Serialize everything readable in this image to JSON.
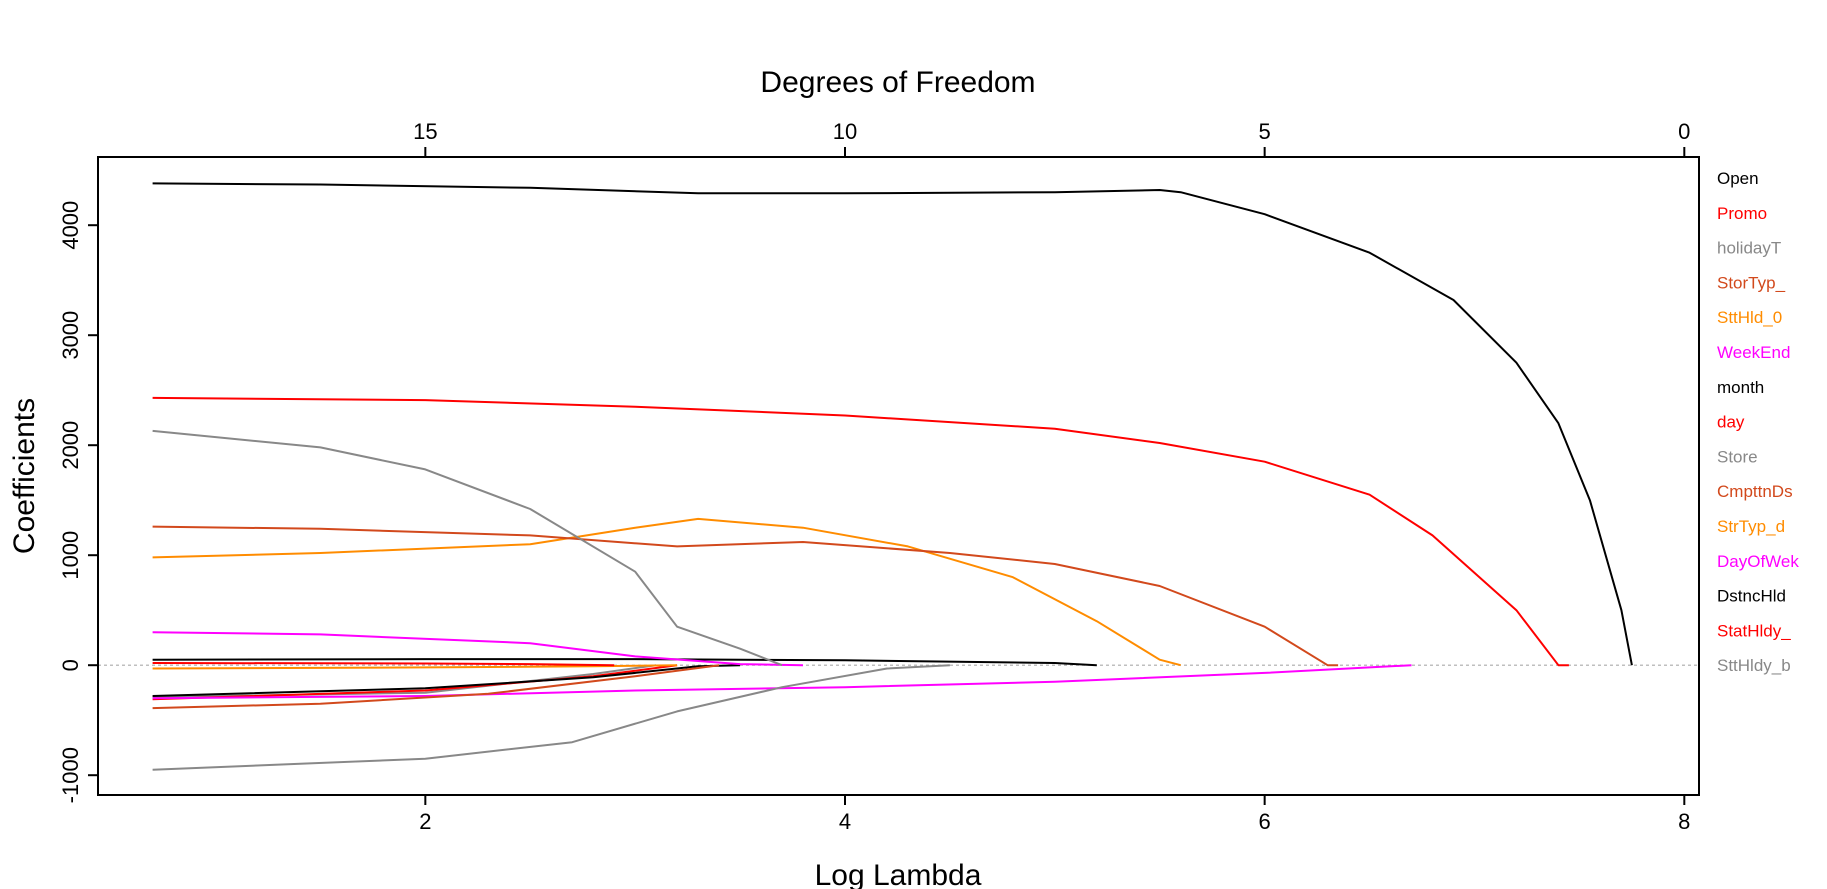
{
  "chart_data": {
    "type": "line",
    "xlabel": "Log Lambda",
    "ylabel": "Coefficients",
    "top_axis_label": "Degrees of Freedom",
    "xlim": [
      0.44,
      8.07
    ],
    "ylim": [
      -1180,
      4620
    ],
    "x_ticks": [
      2,
      4,
      6,
      8
    ],
    "x_tick_labels": [
      "2",
      "4",
      "6",
      "8"
    ],
    "y_ticks": [
      -1000,
      0,
      1000,
      2000,
      3000,
      4000
    ],
    "y_tick_labels": [
      "-1000",
      "0",
      "1000",
      "2000",
      "3000",
      "4000"
    ],
    "top_ticks_at_x": [
      2,
      4,
      6,
      8
    ],
    "top_tick_labels": [
      "15",
      "10",
      "5",
      "0"
    ],
    "zero_line": true,
    "series": [
      {
        "name": "Open",
        "color": "#000000",
        "x": [
          0.7,
          1.5,
          2.5,
          3.3,
          4.0,
          5.0,
          5.5,
          5.6,
          6.0,
          6.5,
          6.9,
          7.2,
          7.4,
          7.55,
          7.7,
          7.75
        ],
        "y": [
          4380,
          4370,
          4340,
          4290,
          4290,
          4300,
          4320,
          4300,
          4100,
          3750,
          3320,
          2750,
          2200,
          1500,
          500,
          0
        ]
      },
      {
        "name": "Promo",
        "color": "#ff0000",
        "x": [
          0.7,
          2.0,
          3.0,
          4.0,
          5.0,
          5.5,
          6.0,
          6.5,
          6.8,
          7.2,
          7.4,
          7.45
        ],
        "y": [
          2430,
          2410,
          2350,
          2270,
          2150,
          2020,
          1850,
          1550,
          1180,
          500,
          0,
          0
        ]
      },
      {
        "name": "holidayT",
        "color": "#888888",
        "x": [
          0.7,
          1.5,
          2.0,
          2.5,
          3.0,
          3.2,
          3.5,
          3.7
        ],
        "y": [
          2130,
          1980,
          1780,
          1420,
          850,
          350,
          150,
          0
        ]
      },
      {
        "name": "StorTyp_",
        "color": "#d2491c",
        "x": [
          0.7,
          1.5,
          2.5,
          3.2,
          3.8,
          4.5,
          5.0,
          5.5,
          6.0,
          6.3,
          6.35
        ],
        "y": [
          1260,
          1240,
          1180,
          1080,
          1120,
          1020,
          920,
          720,
          350,
          0,
          0
        ]
      },
      {
        "name": "SttHld_0",
        "color": "#ff8c00",
        "x": [
          0.7,
          1.5,
          2.5,
          3.0,
          3.3,
          3.8,
          4.3,
          4.8,
          5.2,
          5.5,
          5.6
        ],
        "y": [
          980,
          1020,
          1100,
          1250,
          1330,
          1250,
          1080,
          800,
          400,
          50,
          0
        ]
      },
      {
        "name": "WeekEnd",
        "color": "#ff00ff",
        "x": [
          0.7,
          1.5,
          2.5,
          3.0,
          3.5,
          3.8
        ],
        "y": [
          300,
          280,
          200,
          80,
          10,
          0
        ]
      },
      {
        "name": "month",
        "color": "#000000",
        "x": [
          0.7,
          2.0,
          3.0,
          4.0,
          5.0,
          5.2
        ],
        "y": [
          50,
          55,
          55,
          45,
          20,
          0
        ]
      },
      {
        "name": "day",
        "color": "#ff0000",
        "x": [
          0.7,
          2.0,
          2.5,
          2.9
        ],
        "y": [
          20,
          15,
          10,
          0
        ]
      },
      {
        "name": "Store",
        "color": "#888888",
        "x": [
          0.7,
          2.0,
          2.7,
          3.2,
          3.7,
          4.2,
          4.5
        ],
        "y": [
          -950,
          -850,
          -700,
          -420,
          -200,
          -30,
          0
        ]
      },
      {
        "name": "CmpttnDs",
        "color": "#d2491c",
        "x": [
          0.7,
          1.5,
          2.3,
          3.0,
          3.4
        ],
        "y": [
          -390,
          -350,
          -260,
          -100,
          0
        ]
      },
      {
        "name": "StrTyp_d",
        "color": "#ff8c00",
        "x": [
          0.7,
          2.0,
          2.8,
          3.2
        ],
        "y": [
          -30,
          -20,
          -10,
          0
        ]
      },
      {
        "name": "DayOfWek",
        "color": "#ff00ff",
        "x": [
          0.7,
          2.0,
          3.0,
          4.0,
          5.0,
          6.0,
          6.7
        ],
        "y": [
          -300,
          -280,
          -230,
          -200,
          -150,
          -70,
          0
        ]
      },
      {
        "name": "DstncHld",
        "color": "#000000",
        "x": [
          0.7,
          2.0,
          2.8,
          3.3,
          3.5
        ],
        "y": [
          -280,
          -210,
          -110,
          -10,
          0
        ]
      },
      {
        "name": "StatHldy_",
        "color": "#ff0000",
        "x": [
          0.7,
          2.0,
          2.8,
          3.2
        ],
        "y": [
          -310,
          -230,
          -100,
          0
        ]
      },
      {
        "name": "SttHldy_b",
        "color": "#888888",
        "x": [
          0.7,
          2.0,
          2.8,
          3.1
        ],
        "y": [
          -290,
          -250,
          -80,
          0
        ]
      }
    ]
  }
}
